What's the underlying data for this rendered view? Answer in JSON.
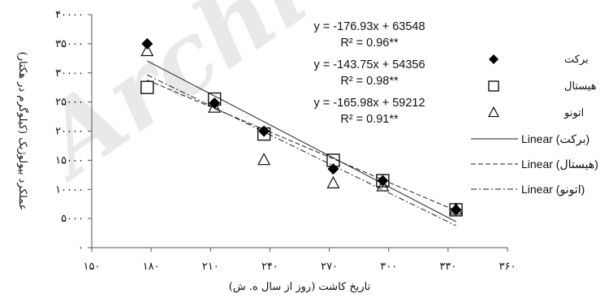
{
  "chart_data": {
    "type": "scatter",
    "xlabel": "تاریخ کاشت (روز از سال ه. ش)",
    "ylabel": "عملکرد بیولوژیک (کیلوگرم در هکتار)",
    "xlim": [
      150,
      360
    ],
    "ylim": [
      0,
      40000
    ],
    "x_ticks": [
      150,
      180,
      210,
      240,
      270,
      300,
      330,
      360
    ],
    "x_tick_labels": [
      "۱۵۰",
      "۱۸۰",
      "۲۱۰",
      "۲۴۰",
      "۲۷۰",
      "۳۰۰",
      "۳۳۰",
      "۳۶۰"
    ],
    "y_ticks": [
      0,
      5000,
      10000,
      15000,
      20000,
      25000,
      30000,
      35000,
      40000
    ],
    "y_tick_labels": [
      "۰",
      "۵۰۰۰",
      "۱۰۰۰۰",
      "۱۵۰۰۰",
      "۲۰۰۰۰",
      "۲۵۰۰۰",
      "۳۰۰۰۰",
      "۳۵۰۰۰",
      "۴۰۰۰۰"
    ],
    "grid": false,
    "legend_position": "right",
    "series": [
      {
        "name": "برکت",
        "marker": "diamond",
        "color": "#000000",
        "x": [
          178,
          212,
          237,
          272,
          297,
          334
        ],
        "y": [
          35000,
          24800,
          20000,
          13500,
          11500,
          6500
        ],
        "trend_name": "Linear (برکت)",
        "trend_style": "solid",
        "trend": {
          "slope": -176.93,
          "intercept": 63548
        },
        "equation": "y = -176.93x + 63548",
        "r2": "R² = 0.96**"
      },
      {
        "name": "هیستال",
        "marker": "square",
        "color": "#000000",
        "x": [
          178,
          212,
          237,
          272,
          297,
          334
        ],
        "y": [
          27500,
          25500,
          19500,
          15000,
          11500,
          6500
        ],
        "trend_name": "Linear (هیستال)",
        "trend_style": "dashed",
        "trend": {
          "slope": -143.75,
          "intercept": 54356
        },
        "equation": "y = -143.75x + 54356",
        "r2": "R² = 0.98**"
      },
      {
        "name": "اتونو",
        "marker": "triangle",
        "color": "#000000",
        "x": [
          178,
          212,
          237,
          272,
          297,
          334
        ],
        "y": [
          33700,
          24000,
          15000,
          11000,
          10500,
          6500
        ],
        "trend_name": "Linear (اتونو)",
        "trend_style": "dash-dot",
        "trend": {
          "slope": -165.98,
          "intercept": 59212
        },
        "equation": "y = -165.98x + 59212",
        "r2": "R² = 0.91**"
      }
    ]
  }
}
